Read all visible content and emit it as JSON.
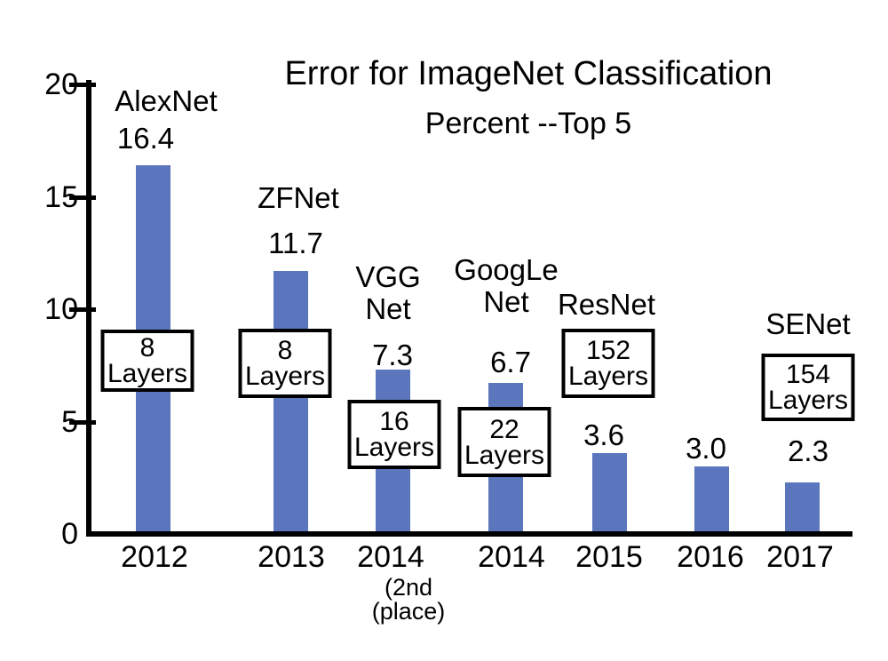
{
  "chart_data": {
    "type": "bar",
    "title": "Error for ImageNet Classification",
    "subtitle": "Percent --Top 5",
    "ylim": [
      0,
      20
    ],
    "yticks": [
      0,
      5,
      10,
      15,
      20
    ],
    "grid": false,
    "legend": false,
    "bar_color": "#5b76bd",
    "axis_color": "#000000",
    "layers_label": "Layers",
    "bars": [
      {
        "year": "2012",
        "year_note": "",
        "name": "AlexNet",
        "value": 16.4,
        "value_label": "16.4",
        "layers": "8"
      },
      {
        "year": "2013",
        "year_note": "",
        "name": "ZFNet",
        "value": 11.7,
        "value_label": "11.7",
        "layers": "8"
      },
      {
        "year": "2014",
        "year_note": "(2nd\n(place)",
        "name": "VGG\nNet",
        "value": 7.3,
        "value_label": "7.3",
        "layers": "16"
      },
      {
        "year": "2014",
        "year_note": "",
        "name": "GoogLe\nNet",
        "value": 6.7,
        "value_label": "6.7",
        "layers": "22"
      },
      {
        "year": "2015",
        "year_note": "",
        "name": "ResNet",
        "value": 3.6,
        "value_label": "3.6",
        "layers": "152"
      },
      {
        "year": "2016",
        "year_note": "",
        "name": "",
        "value": 3.0,
        "value_label": "3.0",
        "layers": ""
      },
      {
        "year": "2017",
        "year_note": "",
        "name": "SENet",
        "value": 2.3,
        "value_label": "2.3",
        "layers": "154"
      }
    ]
  }
}
